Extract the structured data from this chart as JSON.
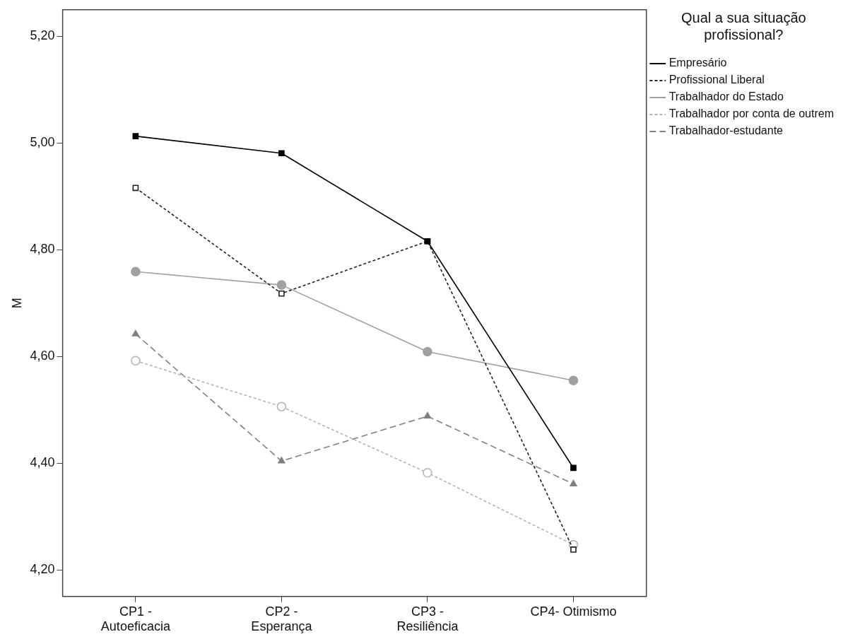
{
  "chart_data": {
    "type": "line",
    "ylabel": "M",
    "legend_title": "Qual a sua situação profissional?",
    "legend": "top right",
    "grid": false,
    "categories": [
      "CP1 - Autoeficacia",
      "CP2 - Esperança",
      "CP3 - Resiliência",
      "CP4- Otimismo"
    ],
    "ylim": [
      4.15,
      5.25
    ],
    "yticks": [
      {
        "value": 4.2,
        "label": "4,20"
      },
      {
        "value": 4.4,
        "label": "4,40"
      },
      {
        "value": 4.6,
        "label": "4,60"
      },
      {
        "value": 4.8,
        "label": "4,80"
      },
      {
        "value": 5.0,
        "label": "5,00"
      },
      {
        "value": 5.2,
        "label": "5,20"
      }
    ],
    "series": [
      {
        "name": "Empresário",
        "color": "#000000",
        "marker": "square",
        "line_style": "solid",
        "values": [
          5.013,
          4.981,
          4.816,
          4.391
        ]
      },
      {
        "name": "Profissional Liberal",
        "color": "#222222",
        "marker": "square",
        "line_style": "dotted",
        "values": [
          4.916,
          4.718,
          4.816,
          4.238
        ]
      },
      {
        "name": "Trabalhador do Estado",
        "color": "#a0a0a0",
        "marker": "circle",
        "line_style": "solid",
        "values": [
          4.759,
          4.734,
          4.609,
          4.555
        ]
      },
      {
        "name": "Trabalhador por conta de outrem",
        "color": "#b4b4b4",
        "marker": "circle",
        "line_style": "dotted",
        "values": [
          4.592,
          4.506,
          4.382,
          4.247
        ]
      },
      {
        "name": "Trabalhador-estudante",
        "color": "#808080",
        "marker": "triangle",
        "line_style": "dashed",
        "values": [
          4.642,
          4.404,
          4.488,
          4.361
        ]
      }
    ]
  }
}
